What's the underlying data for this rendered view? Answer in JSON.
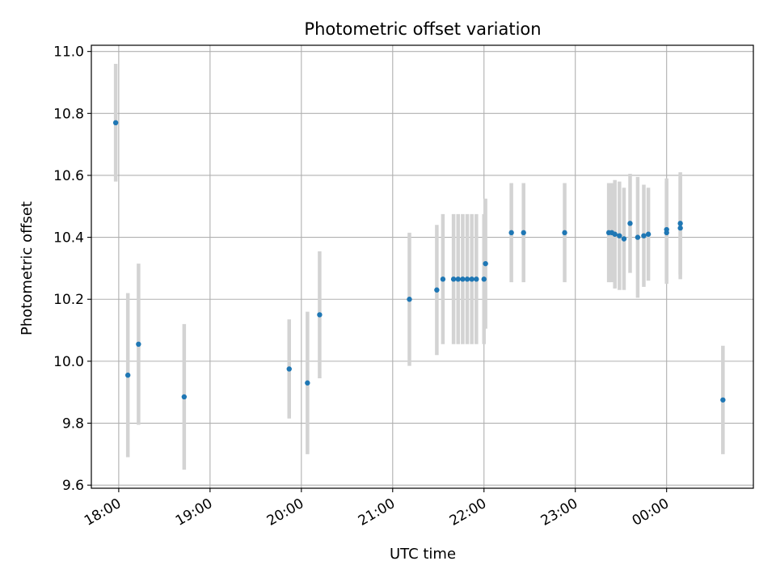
{
  "chart_data": {
    "type": "scatter",
    "title": "Photometric offset variation",
    "xlabel": "UTC time",
    "ylabel": "Photometric offset",
    "x_tick_labels": [
      "18:00",
      "19:00",
      "20:00",
      "21:00",
      "22:00",
      "23:00",
      "00:00"
    ],
    "x_tick_times": [
      "2000-01-01 18:00",
      "2000-01-01 19:00",
      "2000-01-01 20:00",
      "2000-01-01 21:00",
      "2000-01-01 22:00",
      "2000-01-01 23:00",
      "2000-01-02 00:00"
    ],
    "xlim": [
      "2000-01-01 17:42",
      "2000-01-02 00:57"
    ],
    "y_tick_labels": [
      "9.6",
      "9.8",
      "10.0",
      "10.2",
      "10.4",
      "10.6",
      "10.8",
      "11.0"
    ],
    "ylim": [
      9.59,
      11.02
    ],
    "grid": true,
    "colors": {
      "points": "#1f77b4",
      "error_bars": "#d3d3d3",
      "grid": "#b0b0b0"
    },
    "points": [
      {
        "t": "2000-01-01 17:58",
        "y": 10.77,
        "err": 0.19
      },
      {
        "t": "2000-01-01 18:06",
        "y": 9.955,
        "err": 0.265
      },
      {
        "t": "2000-01-01 18:13",
        "y": 10.055,
        "err": 0.26
      },
      {
        "t": "2000-01-01 18:43",
        "y": 9.885,
        "err": 0.235
      },
      {
        "t": "2000-01-01 19:52",
        "y": 9.975,
        "err": 0.16
      },
      {
        "t": "2000-01-01 20:04",
        "y": 9.93,
        "err": 0.23
      },
      {
        "t": "2000-01-01 20:12",
        "y": 10.15,
        "err": 0.205
      },
      {
        "t": "2000-01-01 21:11",
        "y": 10.2,
        "err": 0.215
      },
      {
        "t": "2000-01-01 21:29",
        "y": 10.23,
        "err": 0.21
      },
      {
        "t": "2000-01-01 21:33",
        "y": 10.265,
        "err": 0.21
      },
      {
        "t": "2000-01-01 21:40",
        "y": 10.265,
        "err": 0.21
      },
      {
        "t": "2000-01-01 21:43",
        "y": 10.265,
        "err": 0.21
      },
      {
        "t": "2000-01-01 21:46",
        "y": 10.265,
        "err": 0.21
      },
      {
        "t": "2000-01-01 21:49",
        "y": 10.265,
        "err": 0.21
      },
      {
        "t": "2000-01-01 21:52",
        "y": 10.265,
        "err": 0.21
      },
      {
        "t": "2000-01-01 21:55",
        "y": 10.265,
        "err": 0.21
      },
      {
        "t": "2000-01-01 22:00",
        "y": 10.265,
        "err": 0.21
      },
      {
        "t": "2000-01-01 22:01",
        "y": 10.315,
        "err": 0.21
      },
      {
        "t": "2000-01-01 22:18",
        "y": 10.415,
        "err": 0.16
      },
      {
        "t": "2000-01-01 22:26",
        "y": 10.415,
        "err": 0.16
      },
      {
        "t": "2000-01-01 22:53",
        "y": 10.415,
        "err": 0.16
      },
      {
        "t": "2000-01-01 23:22",
        "y": 10.415,
        "err": 0.16
      },
      {
        "t": "2000-01-01 23:24",
        "y": 10.415,
        "err": 0.16
      },
      {
        "t": "2000-01-01 23:26",
        "y": 10.41,
        "err": 0.175
      },
      {
        "t": "2000-01-01 23:29",
        "y": 10.405,
        "err": 0.175
      },
      {
        "t": "2000-01-01 23:32",
        "y": 10.395,
        "err": 0.165
      },
      {
        "t": "2000-01-01 23:36",
        "y": 10.445,
        "err": 0.16
      },
      {
        "t": "2000-01-01 23:41",
        "y": 10.4,
        "err": 0.195
      },
      {
        "t": "2000-01-01 23:45",
        "y": 10.405,
        "err": 0.165
      },
      {
        "t": "2000-01-01 23:48",
        "y": 10.41,
        "err": 0.15
      },
      {
        "t": "2000-01-02 00:00",
        "y": 10.415,
        "err": 0.165
      },
      {
        "t": "2000-01-02 00:00",
        "y": 10.425,
        "err": 0.165
      },
      {
        "t": "2000-01-02 00:09",
        "y": 10.445,
        "err": 0.165
      },
      {
        "t": "2000-01-02 00:09",
        "y": 10.43,
        "err": 0.165
      },
      {
        "t": "2000-01-02 00:37",
        "y": 9.875,
        "err": 0.175
      }
    ]
  }
}
